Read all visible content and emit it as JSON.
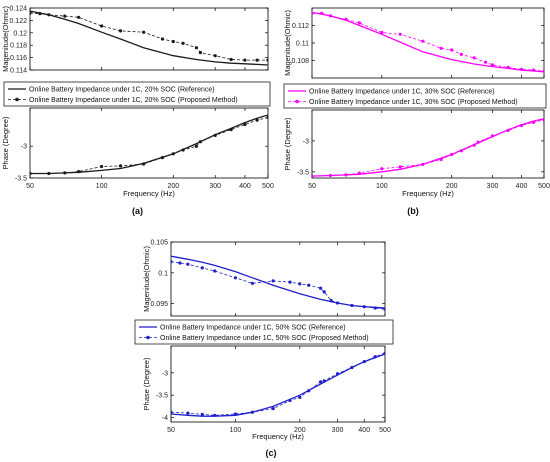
{
  "figure": {
    "panels": [
      {
        "letter": "(a)",
        "color": "#1a1a1a",
        "legend": [
          "Online Battery Impedance under 1C, 20% SOC (Reference)",
          "Online Battery Impedance under 1C, 20% SOC  (Proposed Method)"
        ]
      },
      {
        "letter": "(b)",
        "color": "#ff00ff",
        "legend": [
          "Online Battery Impedance under 1C, 30% SOC (Reference)",
          "Online Battery Impedance under 1C, 30% SOC  (Proposed Method)"
        ]
      },
      {
        "letter": "(c)",
        "color": "#1f1fcc",
        "legend": [
          "Online Battery Impedance under 1C, 50% SOC (Reference)",
          "Online Battery Impedance under 1C, 50% SOC  (Proposed Method)"
        ]
      }
    ]
  },
  "chart_data": [
    {
      "type": "line",
      "panel": "(a)",
      "xlabel": "Frequency (Hz)",
      "x_scale": "log",
      "xlim": [
        50,
        500
      ],
      "xticks": [
        50,
        100,
        200,
        300,
        400,
        500
      ],
      "magnitude": {
        "ylabel": "Magenitude(Ohmic)",
        "ylim": [
          0.114,
          0.124
        ],
        "yticks": [
          0.114,
          0.116,
          0.118,
          0.12,
          0.122,
          0.124
        ],
        "series": [
          {
            "name": "Online Battery Impedance under 1C, 20% SOC (Reference)",
            "x": [
              50,
              60,
              70,
              80,
              100,
              120,
              150,
              200,
              250,
              300,
              350,
              400,
              450,
              500
            ],
            "y": [
              0.1235,
              0.1229,
              0.1222,
              0.1215,
              0.1201,
              0.119,
              0.1176,
              0.1163,
              0.1157,
              0.1153,
              0.1151,
              0.115,
              0.1149,
              0.1148
            ]
          },
          {
            "name": "Online Battery Impedance under 1C, 20% SOC  (Proposed Method)",
            "x": [
              50,
              55,
              60,
              70,
              80,
              100,
              120,
              150,
              180,
              200,
              220,
              250,
              260,
              300,
              350,
              400,
              450,
              500
            ],
            "y": [
              0.1232,
              0.1231,
              0.1229,
              0.1227,
              0.1225,
              0.1211,
              0.1203,
              0.1201,
              0.119,
              0.1186,
              0.1183,
              0.1176,
              0.1168,
              0.1163,
              0.1157,
              0.1156,
              0.1156,
              0.1156
            ]
          }
        ]
      },
      "phase": {
        "ylabel": "Phase (Degree)",
        "ylim": [
          -3.5,
          -2.4
        ],
        "yticks": [
          -3.5,
          -3
        ],
        "series": [
          {
            "name": "Online Battery Impedance under 1C, 20% SOC (Reference)",
            "x": [
              50,
              60,
              70,
              80,
              100,
              120,
              150,
              200,
              250,
              300,
              350,
              400,
              450,
              500
            ],
            "y": [
              -3.43,
              -3.43,
              -3.42,
              -3.41,
              -3.38,
              -3.35,
              -3.27,
              -3.12,
              -2.96,
              -2.82,
              -2.72,
              -2.63,
              -2.56,
              -2.51
            ]
          },
          {
            "name": "Online Battery Impedance under 1C, 20% SOC  (Proposed Method)",
            "x": [
              50,
              60,
              70,
              80,
              100,
              120,
              150,
              180,
              200,
              220,
              250,
              260,
              300,
              350,
              400,
              450,
              500
            ],
            "y": [
              -3.43,
              -3.43,
              -3.42,
              -3.4,
              -3.32,
              -3.31,
              -3.28,
              -3.18,
              -3.12,
              -3.06,
              -3.0,
              -2.93,
              -2.83,
              -2.74,
              -2.66,
              -2.59,
              -2.55
            ]
          }
        ]
      }
    },
    {
      "type": "line",
      "panel": "(b)",
      "xlabel": "Frequency (Hz)",
      "x_scale": "log",
      "xlim": [
        50,
        500
      ],
      "xticks": [
        50,
        100,
        200,
        300,
        400,
        500
      ],
      "magnitude": {
        "ylabel": "Magenitude(Ohmic)",
        "ylim": [
          0.106,
          0.114
        ],
        "yticks": [
          0.108,
          0.11,
          0.112
        ],
        "series": [
          {
            "name": "Online Battery Impedance under 1C, 30% SOC (Reference)",
            "x": [
              50,
              60,
              70,
              80,
              100,
              120,
              150,
              200,
              250,
              300,
              350,
              400,
              450,
              500
            ],
            "y": [
              0.1135,
              0.1131,
              0.1126,
              0.112,
              0.111,
              0.1101,
              0.109,
              0.1081,
              0.1076,
              0.1073,
              0.1071,
              0.1069,
              0.1068,
              0.1067
            ]
          },
          {
            "name": "Online Battery Impedance under 1C, 30% SOC  (Proposed Method)",
            "x": [
              50,
              55,
              60,
              70,
              80,
              100,
              120,
              150,
              180,
              200,
              220,
              250,
              280,
              300,
              350,
              400,
              450,
              500
            ],
            "y": [
              0.1134,
              0.1134,
              0.1131,
              0.1127,
              0.1123,
              0.1112,
              0.111,
              0.1102,
              0.1094,
              0.1092,
              0.1087,
              0.1083,
              0.1078,
              0.1075,
              0.1072,
              0.107,
              0.1069,
              0.1068
            ]
          }
        ]
      },
      "phase": {
        "ylabel": "Phase (Degree)",
        "ylim": [
          -3.6,
          -2.5
        ],
        "yticks": [
          -3.5,
          -3
        ],
        "series": [
          {
            "name": "Online Battery Impedance under 1C, 30% SOC (Reference)",
            "x": [
              50,
              60,
              70,
              80,
              100,
              120,
              150,
              200,
              250,
              300,
              350,
              400,
              450,
              500
            ],
            "y": [
              -3.57,
              -3.56,
              -3.55,
              -3.54,
              -3.5,
              -3.46,
              -3.38,
              -3.22,
              -3.06,
              -2.93,
              -2.82,
              -2.74,
              -2.68,
              -2.64
            ]
          },
          {
            "name": "Online Battery Impedance under 1C, 30% SOC  (Proposed Method)",
            "x": [
              50,
              60,
              70,
              80,
              100,
              120,
              150,
              180,
              200,
              220,
              250,
              260,
              300,
              350,
              400,
              450,
              500
            ],
            "y": [
              -3.57,
              -3.56,
              -3.55,
              -3.52,
              -3.45,
              -3.42,
              -3.38,
              -3.3,
              -3.22,
              -3.16,
              -3.07,
              -3.02,
              -2.92,
              -2.83,
              -2.75,
              -2.7,
              -2.66
            ]
          }
        ]
      }
    },
    {
      "type": "line",
      "panel": "(c)",
      "xlabel": "Frequency (Hz)",
      "x_scale": "log",
      "xlim": [
        50,
        500
      ],
      "xticks": [
        50,
        100,
        200,
        300,
        400,
        500
      ],
      "magnitude": {
        "ylabel": "Magenitude(Ohmic)",
        "ylim": [
          0.093,
          0.105
        ],
        "yticks": [
          0.095,
          0.1,
          0.105
        ],
        "series": [
          {
            "name": "Online Battery Impedance under 1C, 50% SOC (Reference)",
            "x": [
              50,
              60,
              70,
              80,
              100,
              120,
              150,
              200,
              250,
              300,
              350,
              400,
              450,
              500
            ],
            "y": [
              0.1027,
              0.1022,
              0.1017,
              0.1012,
              0.1002,
              0.0992,
              0.098,
              0.0966,
              0.0957,
              0.0951,
              0.0947,
              0.0945,
              0.0944,
              0.0943
            ]
          },
          {
            "name": "Online Battery Impedance under 1C, 50% SOC  (Proposed Method)",
            "x": [
              50,
              55,
              60,
              70,
              80,
              100,
              120,
              150,
              180,
              200,
              220,
              250,
              260,
              280,
              300,
              350,
              400,
              450,
              500
            ],
            "y": [
              0.1018,
              0.1016,
              0.1014,
              0.1008,
              0.1003,
              0.0992,
              0.0983,
              0.0987,
              0.0985,
              0.0982,
              0.098,
              0.0975,
              0.0969,
              0.0955,
              0.0951,
              0.0947,
              0.0945,
              0.0943,
              0.0941
            ]
          }
        ]
      },
      "phase": {
        "ylabel": "Phase (Degree)",
        "ylim": [
          -4.1,
          -2.4
        ],
        "yticks": [
          -4,
          -3.5,
          -3
        ],
        "series": [
          {
            "name": "Online Battery Impedance under 1C, 50% SOC (Reference)",
            "x": [
              50,
              60,
              70,
              80,
              100,
              120,
              150,
              200,
              250,
              300,
              350,
              400,
              450,
              500
            ],
            "y": [
              -3.92,
              -3.95,
              -3.97,
              -3.97,
              -3.95,
              -3.88,
              -3.75,
              -3.5,
              -3.25,
              -3.05,
              -2.88,
              -2.75,
              -2.66,
              -2.58
            ]
          },
          {
            "name": "Online Battery Impedance under 1C, 50% SOC  (Proposed Method)",
            "x": [
              50,
              60,
              70,
              80,
              100,
              120,
              150,
              180,
              200,
              220,
              250,
              260,
              300,
              350,
              400,
              450,
              500
            ],
            "y": [
              -3.88,
              -3.9,
              -3.93,
              -3.95,
              -3.92,
              -3.88,
              -3.8,
              -3.62,
              -3.55,
              -3.4,
              -3.2,
              -3.18,
              -3.02,
              -2.88,
              -2.75,
              -2.64,
              -2.56
            ]
          }
        ]
      }
    }
  ]
}
